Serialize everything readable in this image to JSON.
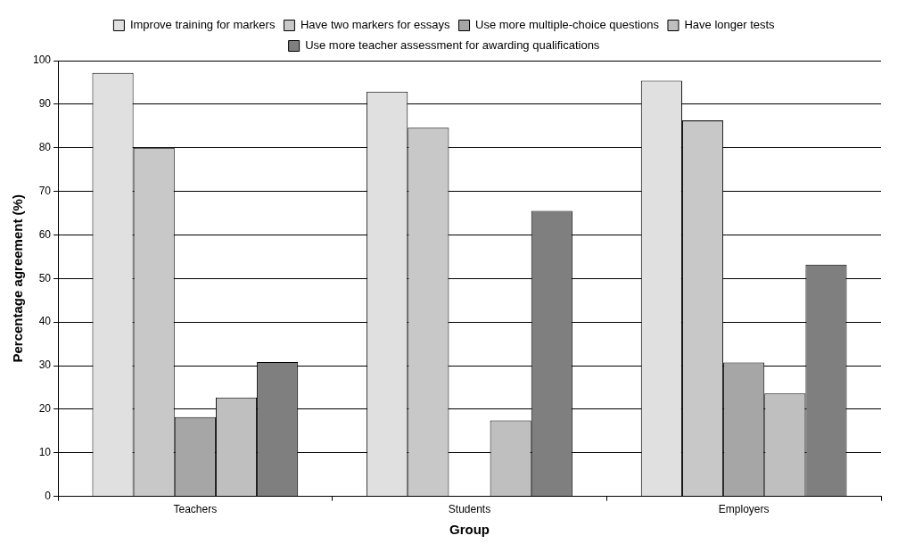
{
  "chart_data": {
    "type": "bar",
    "xlabel": "Group",
    "ylabel": "Percentage agreement (%)",
    "categories": [
      "Teachers",
      "Students",
      "Employers"
    ],
    "series": [
      {
        "name": "Improve training for markers",
        "color": "#e0e0e0",
        "values": [
          97.2,
          92.9,
          95.4
        ]
      },
      {
        "name": "Have two markers for essays",
        "color": "#c8c8c8",
        "values": [
          80,
          84.6,
          86.3
        ]
      },
      {
        "name": "Use more multiple-choice questions",
        "color": "#a6a6a6",
        "values": [
          18.2,
          null,
          30.7
        ]
      },
      {
        "name": "Have longer tests",
        "color": "#bfbfbf",
        "values": [
          22.7,
          17.4,
          23.6
        ]
      },
      {
        "name": "Use more teacher assessment for awarding qualifications",
        "color": "#7f7f7f",
        "values": [
          30.8,
          65.5,
          53.2
        ]
      }
    ],
    "ylim": [
      0,
      100
    ],
    "yticks": [
      0,
      10,
      20,
      30,
      40,
      50,
      60,
      70,
      80,
      90,
      100
    ],
    "grid": "y",
    "legend": "top"
  }
}
